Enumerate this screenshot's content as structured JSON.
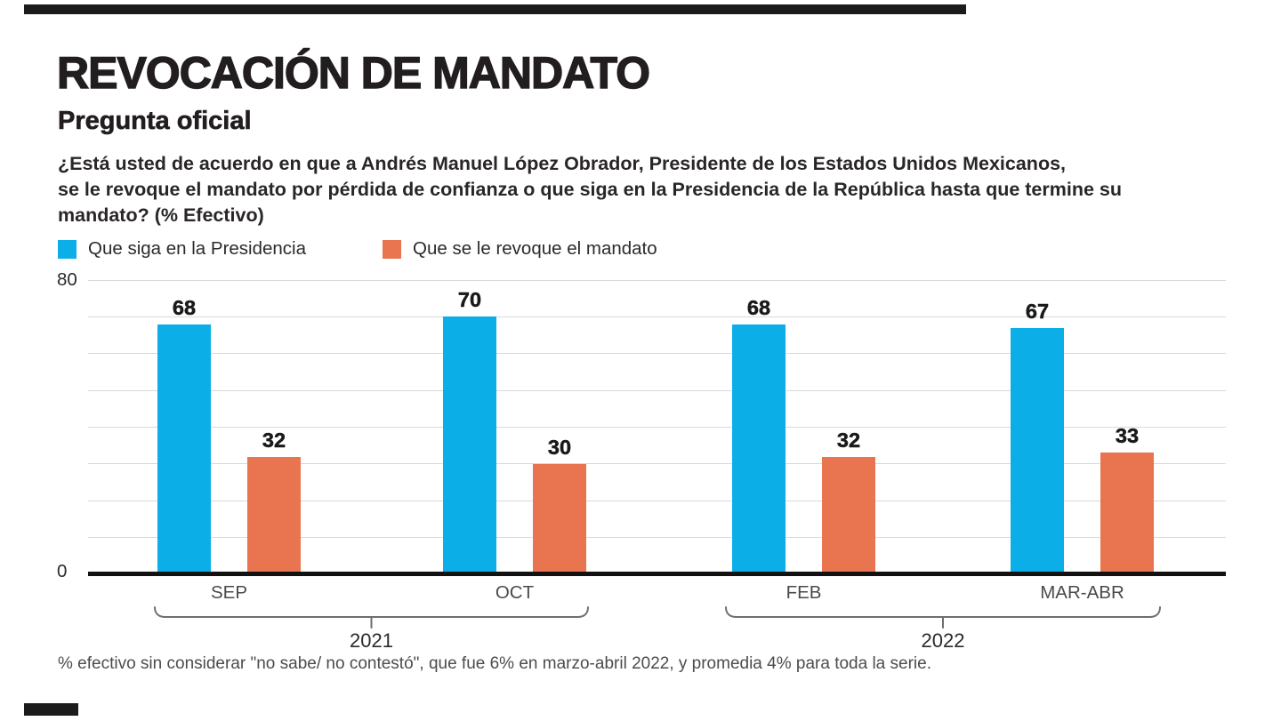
{
  "header": {
    "title": "REVOCACIÓN DE MANDATO",
    "subtitle": "Pregunta oficial",
    "question_lines": [
      "¿Está usted de acuerdo en que a Andrés Manuel López Obrador, Presidente de los Estados Unidos Mexicanos,",
      "se le revoque el mandato por pérdida de confianza o que siga en la Presidencia de la República hasta que termine su",
      "mandato? (% Efectivo)"
    ]
  },
  "colors": {
    "stay": "#0caee8",
    "revoke": "#e97450",
    "grid": "#d9d9d9",
    "axis": "#121212",
    "bracket": "#6d6e71",
    "brand": "#1b1b1b"
  },
  "legend": {
    "items": [
      {
        "label": "Que siga en la Presidencia",
        "color_key": "stay"
      },
      {
        "label": "Que se le revoque el mandato",
        "color_key": "revoke"
      }
    ]
  },
  "chart_data": {
    "type": "bar",
    "categories": [
      "SEP",
      "OCT",
      "FEB",
      "MAR-ABR"
    ],
    "series": [
      {
        "name": "Que siga en la Presidencia",
        "key": "stay",
        "color": "#0caee8",
        "values": [
          68,
          70,
          68,
          67
        ]
      },
      {
        "name": "Que se le revoque el mandato",
        "key": "revoke",
        "color": "#e97450",
        "values": [
          32,
          30,
          32,
          33
        ]
      }
    ],
    "year_groups": [
      {
        "label": "2021",
        "span": [
          "SEP",
          "OCT"
        ]
      },
      {
        "label": "2022",
        "span": [
          "FEB",
          "MAR-ABR"
        ]
      }
    ],
    "ylim": [
      0,
      80
    ],
    "ytick_labels": [
      "80",
      "0"
    ],
    "gridline_interval": 10,
    "grid": true,
    "legend_position": "top-left",
    "value_labels": true
  },
  "footnote": "% efectivo sin considerar \"no sabe/ no contestó\", que fue 6% en marzo-abril 2022, y promedia 4% para toda la serie."
}
